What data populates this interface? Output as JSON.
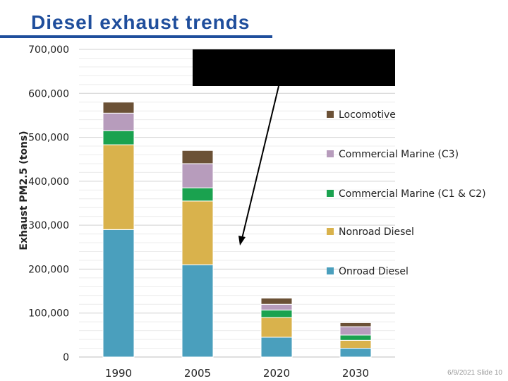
{
  "page": {
    "title": "Diesel exhaust trends",
    "footer": "6/9/2021 Slide 10"
  },
  "chart_data": {
    "type": "bar",
    "stacked": true,
    "categories": [
      "1990",
      "2005",
      "2020",
      "2030"
    ],
    "ylabel": "Exhaust PM2.5 (tons)",
    "xlabel": "",
    "ylim": [
      0,
      700000
    ],
    "yticks": [
      0,
      100000,
      200000,
      300000,
      400000,
      500000,
      600000,
      700000
    ],
    "ytick_labels": [
      "0",
      "100,000",
      "200,000",
      "300,000",
      "400,000",
      "500,000",
      "600,000",
      "700,000"
    ],
    "grid": true,
    "series": [
      {
        "name": "Onroad Diesel",
        "color": "#4a9fbd",
        "values": [
          290000,
          210000,
          45000,
          20000
        ]
      },
      {
        "name": "Nonroad Diesel",
        "color": "#d9b24c",
        "values": [
          193000,
          145000,
          45000,
          18000
        ]
      },
      {
        "name": "Commercial Marine (C1 & C2)",
        "color": "#1aa24f",
        "values": [
          32000,
          30000,
          17000,
          12000
        ]
      },
      {
        "name": "Commercial Marine (C3)",
        "color": "#b79cbc",
        "values": [
          40000,
          55000,
          13000,
          19000
        ]
      },
      {
        "name": "Locomotive",
        "color": "#6b5136",
        "values": [
          25000,
          30000,
          14000,
          9000
        ]
      }
    ],
    "legend_order": [
      "Locomotive",
      "Commercial Marine (C3)",
      "Commercial Marine (C1 & C2)",
      "Nonroad Diesel",
      "Onroad Diesel"
    ],
    "annotation": {
      "type": "redacted-box-with-arrow",
      "color": "#000000"
    }
  }
}
